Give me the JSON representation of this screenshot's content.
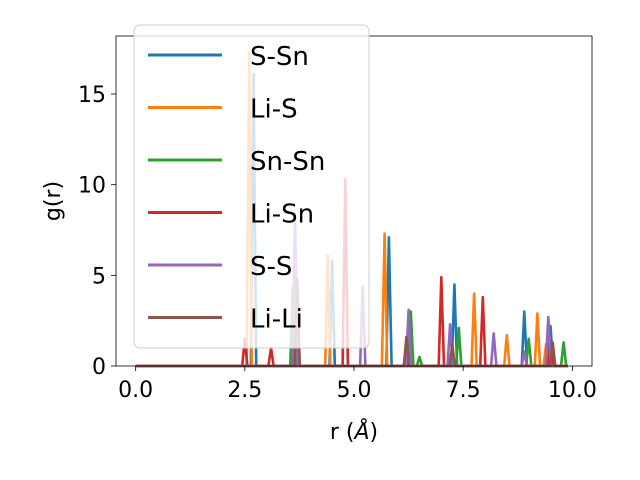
{
  "chart_data": {
    "type": "line",
    "title": "",
    "xlabel_prefix": "r (",
    "xlabel_symbol": "Å",
    "xlabel_suffix": ")",
    "ylabel": "g(r)",
    "xlim": [
      -0.45,
      10.45
    ],
    "ylim": [
      0,
      18.2
    ],
    "xticks": [
      0.0,
      2.5,
      5.0,
      7.5,
      10.0
    ],
    "xtick_labels": [
      "0.0",
      "2.5",
      "5.0",
      "7.5",
      "10.0"
    ],
    "yticks": [
      0,
      5,
      10,
      15
    ],
    "ytick_labels": [
      "0",
      "5",
      "10",
      "15"
    ],
    "legend_position": "upper-left",
    "peak_half_width": 0.06,
    "series": [
      {
        "name": "S-Sn",
        "color": "#1f77b4",
        "peaks": [
          [
            2.7,
            16.1
          ],
          [
            4.5,
            5.8
          ],
          [
            5.8,
            7.1
          ],
          [
            7.3,
            4.5
          ],
          [
            8.9,
            3.0
          ],
          [
            9.5,
            2.2
          ]
        ]
      },
      {
        "name": "Li-S",
        "color": "#ff7f0e",
        "peaks": [
          [
            2.6,
            17.3
          ],
          [
            4.4,
            6.1
          ],
          [
            5.7,
            7.3
          ],
          [
            7.75,
            4.0
          ],
          [
            8.5,
            1.7
          ],
          [
            9.2,
            2.9
          ],
          [
            9.4,
            1.2
          ]
        ]
      },
      {
        "name": "Sn-Sn",
        "color": "#2ca02c",
        "peaks": [
          [
            3.6,
            4.4
          ],
          [
            6.3,
            3.0
          ],
          [
            6.5,
            0.5
          ],
          [
            7.4,
            2.1
          ],
          [
            9.0,
            1.5
          ],
          [
            9.8,
            1.3
          ]
        ]
      },
      {
        "name": "Li-Sn",
        "color": "#d62728",
        "peaks": [
          [
            2.5,
            1.5
          ],
          [
            3.1,
            1.0
          ],
          [
            4.8,
            10.3
          ],
          [
            7.0,
            4.9
          ],
          [
            7.95,
            3.8
          ],
          [
            9.5,
            1.4
          ]
        ]
      },
      {
        "name": "S-S",
        "color": "#9467bd",
        "peaks": [
          [
            3.65,
            8.3
          ],
          [
            5.2,
            4.4
          ],
          [
            6.25,
            3.1
          ],
          [
            7.2,
            2.3
          ],
          [
            8.2,
            1.8
          ],
          [
            8.9,
            0.8
          ],
          [
            9.45,
            2.7
          ]
        ]
      },
      {
        "name": "Li-Li",
        "color": "#8c564b",
        "peaks": [
          [
            3.7,
            4.8
          ],
          [
            6.2,
            1.6
          ],
          [
            7.25,
            1.2
          ],
          [
            9.55,
            1.3
          ]
        ]
      }
    ]
  }
}
